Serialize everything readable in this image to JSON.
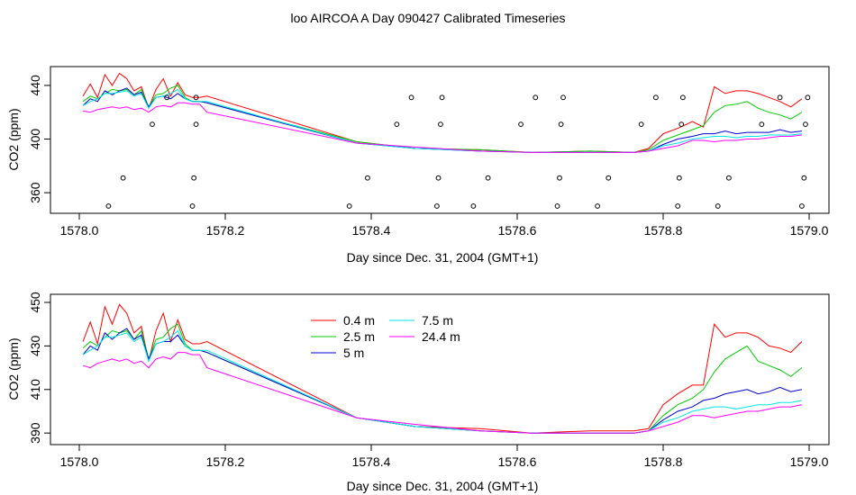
{
  "title": "loo AIRCOA A  Day 090427  Calibrated Timeseries",
  "colors": {
    "s04": "#ff0000",
    "s25": "#00cc00",
    "s5": "#0000cc",
    "s75": "#00e5e5",
    "s244": "#ff00ff",
    "axis": "#000000"
  },
  "chart_data": [
    {
      "type": "line",
      "xlabel": "Day since Dec. 31, 2004 (GMT+1)",
      "ylabel": "CO2 (ppm)",
      "xlim": [
        1578.0,
        1579.0
      ],
      "ylim": [
        350,
        448
      ],
      "x_ticks": [
        1578.0,
        1578.2,
        1578.4,
        1578.6,
        1578.8,
        1579.0
      ],
      "x_tick_labels": [
        "1578.0",
        "1578.2",
        "1578.4",
        "1578.6",
        "1578.8",
        "1579.0"
      ],
      "y_ticks": [
        360,
        400,
        440
      ],
      "y_tick_labels": [
        "360",
        "400",
        "440"
      ],
      "grid": false,
      "legend": "none",
      "series": [
        {
          "key": "s04",
          "x": [
            1578.005,
            1578.015,
            1578.025,
            1578.035,
            1578.045,
            1578.055,
            1578.065,
            1578.075,
            1578.085,
            1578.095,
            1578.105,
            1578.115,
            1578.125,
            1578.135,
            1578.145,
            1578.155,
            1578.165,
            1578.175,
            1578.38,
            1578.46,
            1578.55,
            1578.62,
            1578.7,
            1578.76,
            1578.78,
            1578.8,
            1578.82,
            1578.84,
            1578.855,
            1578.87,
            1578.885,
            1578.9,
            1578.915,
            1578.93,
            1578.945,
            1578.96,
            1578.975,
            1578.99
          ],
          "y": [
            432,
            441,
            431,
            448,
            440,
            449,
            445,
            436,
            439,
            423,
            437,
            445,
            432,
            442,
            433,
            431,
            431,
            432,
            398,
            393,
            392,
            390,
            391,
            390,
            393,
            404,
            408,
            413,
            409,
            439,
            434,
            436,
            436,
            434,
            431,
            428,
            424,
            430
          ]
        },
        {
          "key": "s25",
          "x": [
            1578.005,
            1578.015,
            1578.025,
            1578.035,
            1578.045,
            1578.055,
            1578.065,
            1578.075,
            1578.085,
            1578.095,
            1578.105,
            1578.115,
            1578.125,
            1578.135,
            1578.145,
            1578.155,
            1578.165,
            1578.175,
            1578.38,
            1578.46,
            1578.55,
            1578.62,
            1578.7,
            1578.76,
            1578.78,
            1578.8,
            1578.82,
            1578.84,
            1578.855,
            1578.87,
            1578.885,
            1578.9,
            1578.915,
            1578.93,
            1578.945,
            1578.96,
            1578.975,
            1578.99
          ],
          "y": [
            428,
            432,
            430,
            434,
            437,
            436,
            437,
            433,
            437,
            424,
            433,
            434,
            438,
            440,
            431,
            428,
            428,
            427,
            398,
            393,
            392,
            390,
            391,
            390,
            392,
            399,
            403,
            407,
            410,
            420,
            425,
            426,
            428,
            423,
            420,
            418,
            415,
            420
          ]
        },
        {
          "key": "s5",
          "x": [
            1578.005,
            1578.015,
            1578.025,
            1578.035,
            1578.045,
            1578.055,
            1578.065,
            1578.075,
            1578.085,
            1578.095,
            1578.105,
            1578.115,
            1578.125,
            1578.135,
            1578.145,
            1578.155,
            1578.165,
            1578.175,
            1578.38,
            1578.46,
            1578.55,
            1578.62,
            1578.7,
            1578.76,
            1578.78,
            1578.8,
            1578.82,
            1578.84,
            1578.855,
            1578.87,
            1578.885,
            1578.9,
            1578.915,
            1578.93,
            1578.945,
            1578.96,
            1578.975,
            1578.99
          ],
          "y": [
            425,
            430,
            428,
            436,
            433,
            436,
            438,
            433,
            435,
            424,
            431,
            432,
            430,
            434,
            430,
            428,
            428,
            427,
            397,
            393,
            391,
            390,
            390,
            390,
            391,
            396,
            400,
            402,
            404,
            404,
            406,
            404,
            405,
            405,
            405,
            407,
            405,
            406
          ]
        },
        {
          "key": "s75",
          "x": [
            1578.005,
            1578.015,
            1578.025,
            1578.035,
            1578.045,
            1578.055,
            1578.065,
            1578.075,
            1578.085,
            1578.095,
            1578.105,
            1578.115,
            1578.125,
            1578.135,
            1578.145,
            1578.155,
            1578.165,
            1578.175,
            1578.38,
            1578.46,
            1578.55,
            1578.62,
            1578.7,
            1578.76,
            1578.78,
            1578.8,
            1578.82,
            1578.84,
            1578.855,
            1578.87,
            1578.885,
            1578.9,
            1578.915,
            1578.93,
            1578.945,
            1578.96,
            1578.975,
            1578.99
          ],
          "y": [
            425,
            428,
            430,
            434,
            434,
            435,
            436,
            432,
            434,
            423,
            431,
            432,
            434,
            437,
            430,
            428,
            428,
            428,
            397,
            393,
            391,
            390,
            390,
            390,
            391,
            395,
            397,
            400,
            401,
            402,
            402,
            401,
            402,
            402,
            403,
            403,
            403,
            404
          ]
        },
        {
          "key": "s244",
          "x": [
            1578.005,
            1578.015,
            1578.025,
            1578.035,
            1578.045,
            1578.055,
            1578.065,
            1578.075,
            1578.085,
            1578.095,
            1578.105,
            1578.115,
            1578.125,
            1578.135,
            1578.145,
            1578.155,
            1578.165,
            1578.175,
            1578.38,
            1578.46,
            1578.55,
            1578.62,
            1578.7,
            1578.76,
            1578.78,
            1578.8,
            1578.82,
            1578.84,
            1578.855,
            1578.87,
            1578.885,
            1578.9,
            1578.915,
            1578.93,
            1578.945,
            1578.96,
            1578.975,
            1578.99
          ],
          "y": [
            421,
            420,
            422,
            423,
            424,
            423,
            424,
            422,
            423,
            420,
            424,
            425,
            424,
            427,
            427,
            426,
            426,
            420,
            397,
            394,
            391,
            390,
            390,
            390,
            391,
            393,
            395,
            399,
            399,
            398,
            399,
            399,
            400,
            400,
            401,
            402,
            402,
            403
          ]
        },
        {
          "key": "points",
          "marker": "circle",
          "x": [
            1578.04,
            1578.06,
            1578.1,
            1578.12,
            1578.155,
            1578.157,
            1578.16,
            1578.16,
            1578.37,
            1578.395,
            1578.435,
            1578.455,
            1578.49,
            1578.492,
            1578.495,
            1578.497,
            1578.54,
            1578.56,
            1578.605,
            1578.625,
            1578.655,
            1578.658,
            1578.66,
            1578.663,
            1578.71,
            1578.725,
            1578.77,
            1578.79,
            1578.82,
            1578.822,
            1578.825,
            1578.827,
            1578.875,
            1578.89,
            1578.935,
            1578.96,
            1578.99,
            1578.993,
            1578.995,
            1578.998
          ],
          "y": [
            350,
            371,
            411,
            431,
            350,
            371,
            411,
            431,
            350,
            371,
            411,
            431,
            350,
            371,
            411,
            431,
            350,
            371,
            411,
            431,
            350,
            371,
            411,
            431,
            350,
            371,
            411,
            431,
            350,
            371,
            411,
            431,
            350,
            371,
            411,
            431,
            350,
            371,
            411,
            431
          ]
        }
      ]
    },
    {
      "type": "line",
      "xlabel": "Day since Dec. 31, 2004 (GMT+1)",
      "ylabel": "CO2 (ppm)",
      "xlim": [
        1578.0,
        1579.0
      ],
      "ylim": [
        388,
        450
      ],
      "x_ticks": [
        1578.0,
        1578.2,
        1578.4,
        1578.6,
        1578.8,
        1579.0
      ],
      "x_tick_labels": [
        "1578.0",
        "1578.2",
        "1578.4",
        "1578.6",
        "1578.8",
        "1579.0"
      ],
      "y_ticks": [
        390,
        410,
        430,
        450
      ],
      "y_tick_labels": [
        "390",
        "410",
        "430",
        "450"
      ],
      "grid": false,
      "legend": "top-center",
      "series": [
        {
          "key": "s04",
          "name": "0.4 m",
          "x": [
            1578.005,
            1578.015,
            1578.025,
            1578.035,
            1578.045,
            1578.055,
            1578.065,
            1578.075,
            1578.085,
            1578.095,
            1578.105,
            1578.115,
            1578.125,
            1578.135,
            1578.145,
            1578.155,
            1578.165,
            1578.175,
            1578.38,
            1578.46,
            1578.55,
            1578.62,
            1578.7,
            1578.76,
            1578.78,
            1578.8,
            1578.82,
            1578.84,
            1578.855,
            1578.87,
            1578.885,
            1578.9,
            1578.915,
            1578.93,
            1578.945,
            1578.96,
            1578.975,
            1578.99
          ],
          "y": [
            432,
            441,
            431,
            448,
            440,
            449,
            445,
            436,
            439,
            423,
            437,
            445,
            432,
            442,
            433,
            431,
            431,
            432,
            397,
            393,
            392,
            390,
            391,
            391,
            392,
            403,
            408,
            412,
            412,
            440,
            434,
            436,
            436,
            434,
            430,
            429,
            427,
            432
          ]
        },
        {
          "key": "s25",
          "name": "2.5 m",
          "x": [
            1578.005,
            1578.015,
            1578.025,
            1578.035,
            1578.045,
            1578.055,
            1578.065,
            1578.075,
            1578.085,
            1578.095,
            1578.105,
            1578.115,
            1578.125,
            1578.135,
            1578.145,
            1578.155,
            1578.165,
            1578.175,
            1578.38,
            1578.46,
            1578.55,
            1578.62,
            1578.7,
            1578.76,
            1578.78,
            1578.8,
            1578.82,
            1578.84,
            1578.855,
            1578.87,
            1578.885,
            1578.9,
            1578.915,
            1578.93,
            1578.945,
            1578.96,
            1578.975,
            1578.99
          ],
          "y": [
            429,
            432,
            430,
            434,
            437,
            436,
            437,
            433,
            437,
            424,
            433,
            434,
            438,
            440,
            431,
            428,
            428,
            427,
            397,
            393,
            391,
            390,
            390,
            390,
            391,
            398,
            403,
            406,
            410,
            418,
            424,
            427,
            430,
            423,
            421,
            419,
            416,
            420
          ]
        },
        {
          "key": "s5",
          "name": "5 m",
          "x": [
            1578.005,
            1578.015,
            1578.025,
            1578.035,
            1578.045,
            1578.055,
            1578.065,
            1578.075,
            1578.085,
            1578.095,
            1578.105,
            1578.115,
            1578.125,
            1578.135,
            1578.145,
            1578.155,
            1578.165,
            1578.175,
            1578.38,
            1578.46,
            1578.55,
            1578.62,
            1578.7,
            1578.76,
            1578.78,
            1578.8,
            1578.82,
            1578.84,
            1578.855,
            1578.87,
            1578.885,
            1578.9,
            1578.915,
            1578.93,
            1578.945,
            1578.96,
            1578.975,
            1578.99
          ],
          "y": [
            426,
            430,
            428,
            436,
            433,
            436,
            438,
            433,
            435,
            424,
            431,
            432,
            432,
            435,
            430,
            428,
            428,
            427,
            397,
            393,
            391,
            390,
            390,
            390,
            391,
            396,
            400,
            402,
            405,
            406,
            408,
            409,
            410,
            408,
            409,
            411,
            409,
            410
          ]
        },
        {
          "key": "s75",
          "name": "7.5 m",
          "x": [
            1578.005,
            1578.015,
            1578.025,
            1578.035,
            1578.045,
            1578.055,
            1578.065,
            1578.075,
            1578.085,
            1578.095,
            1578.105,
            1578.115,
            1578.125,
            1578.135,
            1578.145,
            1578.155,
            1578.165,
            1578.175,
            1578.38,
            1578.46,
            1578.55,
            1578.62,
            1578.7,
            1578.76,
            1578.78,
            1578.8,
            1578.82,
            1578.84,
            1578.855,
            1578.87,
            1578.885,
            1578.9,
            1578.915,
            1578.93,
            1578.945,
            1578.96,
            1578.975,
            1578.99
          ],
          "y": [
            426,
            428,
            430,
            434,
            434,
            435,
            436,
            432,
            434,
            423,
            431,
            432,
            434,
            437,
            430,
            428,
            428,
            428,
            397,
            393,
            391,
            390,
            390,
            390,
            391,
            395,
            397,
            400,
            401,
            402,
            402,
            401,
            402,
            403,
            403,
            404,
            404,
            405
          ]
        },
        {
          "key": "s244",
          "name": "24.4 m",
          "x": [
            1578.005,
            1578.015,
            1578.025,
            1578.035,
            1578.045,
            1578.055,
            1578.065,
            1578.075,
            1578.085,
            1578.095,
            1578.105,
            1578.115,
            1578.125,
            1578.135,
            1578.145,
            1578.155,
            1578.165,
            1578.175,
            1578.38,
            1578.46,
            1578.55,
            1578.62,
            1578.7,
            1578.76,
            1578.78,
            1578.8,
            1578.82,
            1578.84,
            1578.855,
            1578.87,
            1578.885,
            1578.9,
            1578.915,
            1578.93,
            1578.945,
            1578.96,
            1578.975,
            1578.99
          ],
          "y": [
            421,
            420,
            422,
            423,
            424,
            423,
            424,
            422,
            423,
            420,
            424,
            425,
            424,
            427,
            427,
            426,
            426,
            420,
            397,
            394,
            391,
            390,
            390,
            390,
            391,
            393,
            395,
            398,
            398,
            397,
            398,
            399,
            400,
            400,
            401,
            402,
            402,
            403
          ]
        }
      ]
    }
  ]
}
